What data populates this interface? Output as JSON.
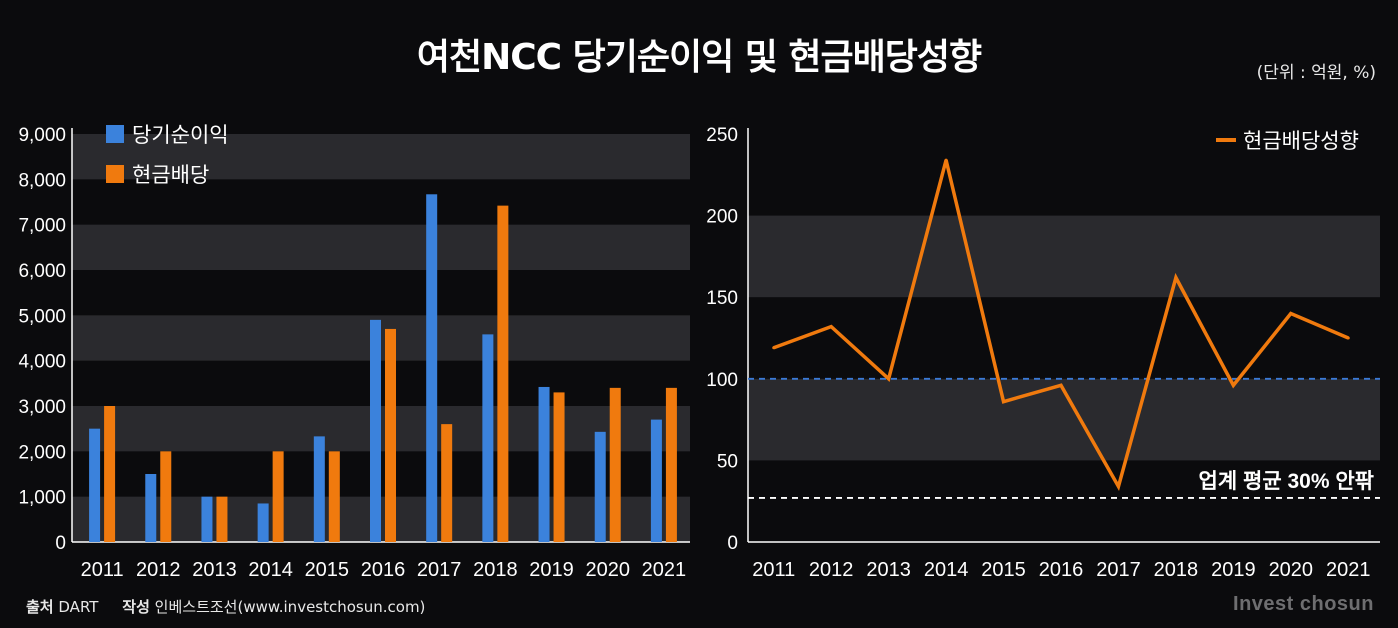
{
  "header": {
    "title": "여천NCC 당기순이익 및 현금배당성향",
    "unit": "(단위 : 억원, %)"
  },
  "footer": {
    "source_label": "출처",
    "source_value": "DART",
    "author_label": "작성",
    "author_value": "인베스트조선(www.investchosun.com)"
  },
  "brand": "Invest chosun",
  "colors": {
    "background": "#0b0b0d",
    "band": "#2a2a2e",
    "net_income": "#3b82dc",
    "dividend": "#f07a0e",
    "ref_100": "#3b7ad6",
    "ref_avg": "#ffffff"
  },
  "chart_data": [
    {
      "type": "bar",
      "categories": [
        "2011",
        "2012",
        "2013",
        "2014",
        "2015",
        "2016",
        "2017",
        "2018",
        "2019",
        "2020",
        "2021"
      ],
      "series": [
        {
          "name": "당기순이익",
          "values": [
            2500,
            1500,
            1000,
            850,
            2330,
            4900,
            7670,
            4580,
            3420,
            2430,
            2700
          ]
        },
        {
          "name": "현금배당",
          "values": [
            3000,
            2000,
            1000,
            2000,
            2000,
            4700,
            2600,
            7420,
            3300,
            3400,
            3400
          ]
        }
      ],
      "ylim": [
        0,
        9000
      ],
      "yticks": [
        "0",
        "1,000",
        "2,000",
        "3,000",
        "4,000",
        "5,000",
        "6,000",
        "7,000",
        "8,000",
        "9,000"
      ],
      "legend": "top-left"
    },
    {
      "type": "line",
      "categories": [
        "2011",
        "2012",
        "2013",
        "2014",
        "2015",
        "2016",
        "2017",
        "2018",
        "2019",
        "2020",
        "2021"
      ],
      "series": [
        {
          "name": "현금배당성향",
          "values": [
            119,
            132,
            100,
            234,
            86,
            96,
            34,
            162,
            96,
            140,
            125
          ]
        }
      ],
      "ylim": [
        0,
        250
      ],
      "yticks": [
        "0",
        "50",
        "100",
        "150",
        "200",
        "250"
      ],
      "reference_lines": [
        {
          "value": 100,
          "style": "dashed-blue"
        },
        {
          "value": 27,
          "style": "dashed-white",
          "label": "업계 평균 30% 안팎"
        }
      ],
      "legend": "top-right"
    }
  ]
}
